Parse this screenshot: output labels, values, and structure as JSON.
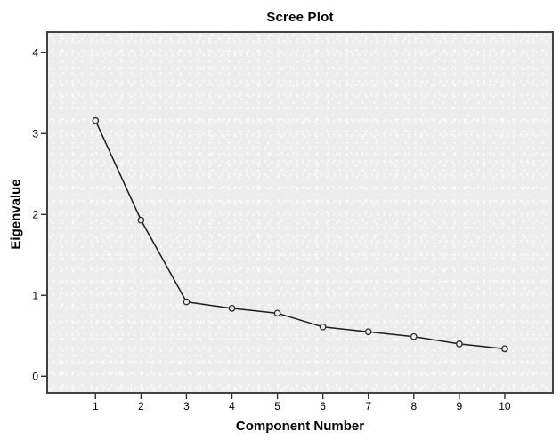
{
  "figure": {
    "title": "Scree Plot"
  },
  "chart_data": {
    "type": "line",
    "title": "Scree Plot",
    "xlabel": "Component Number",
    "ylabel": "Eigenvalue",
    "categories": [
      1,
      2,
      3,
      4,
      5,
      6,
      7,
      8,
      9,
      10
    ],
    "series": [
      {
        "name": "Eigenvalue",
        "values": [
          3.16,
          1.93,
          0.92,
          0.84,
          0.78,
          0.61,
          0.55,
          0.49,
          0.4,
          0.34
        ]
      }
    ],
    "y_ticks": [
      0,
      1,
      2,
      3,
      4
    ],
    "x_ticks": [
      1,
      2,
      3,
      4,
      5,
      6,
      7,
      8,
      9,
      10
    ],
    "ylim": [
      -0.22,
      4.27
    ],
    "xlim": [
      0,
      11
    ],
    "grid": false,
    "legend": "none",
    "marker": "open-circle",
    "colors": {
      "line": "#1c1c1c",
      "marker_stroke": "#2a2a2a",
      "marker_fill": "#ececec",
      "plot_background": "#ececec",
      "frame_border": "#424242",
      "tick": "#2e2e2e",
      "text": "#000000",
      "page_background": "#ffffff"
    }
  }
}
